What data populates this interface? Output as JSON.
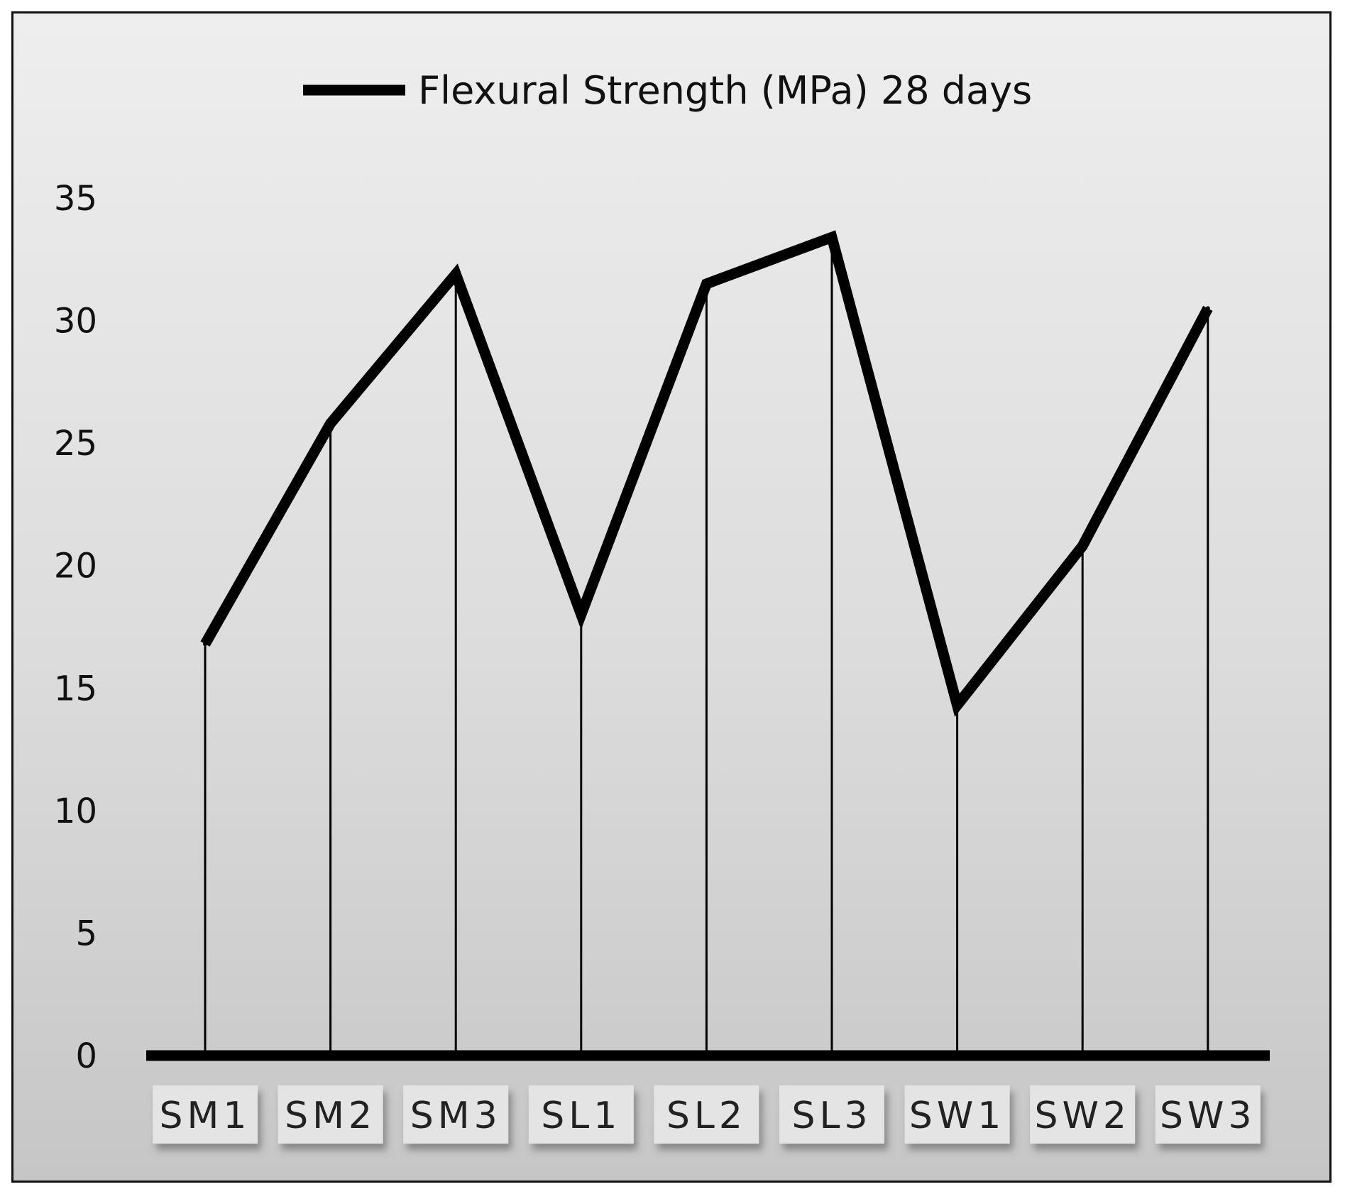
{
  "chart_data": {
    "type": "line",
    "title": "",
    "xlabel": "",
    "ylabel": "",
    "categories": [
      "SM1",
      "SM2",
      "SM3",
      "SL1",
      "SL2",
      "SL3",
      "SW1",
      "SW2",
      "SW3"
    ],
    "series": [
      {
        "name": "Flexural Strength (MPa) 28 days",
        "values": [
          16.8,
          25.8,
          31.9,
          18.0,
          31.5,
          33.4,
          14.3,
          20.8,
          30.5
        ]
      }
    ],
    "ylim": [
      0,
      35
    ],
    "yticks": [
      "0",
      "5",
      "10",
      "15",
      "20",
      "25",
      "30",
      "35"
    ],
    "drop_lines": true,
    "grid": false,
    "legend_position": "top",
    "colors": {
      "line": "#000000",
      "background_top": "#eeeeee",
      "background_bottom": "#c6c6c6",
      "label_box": "#e4e4e4"
    }
  }
}
